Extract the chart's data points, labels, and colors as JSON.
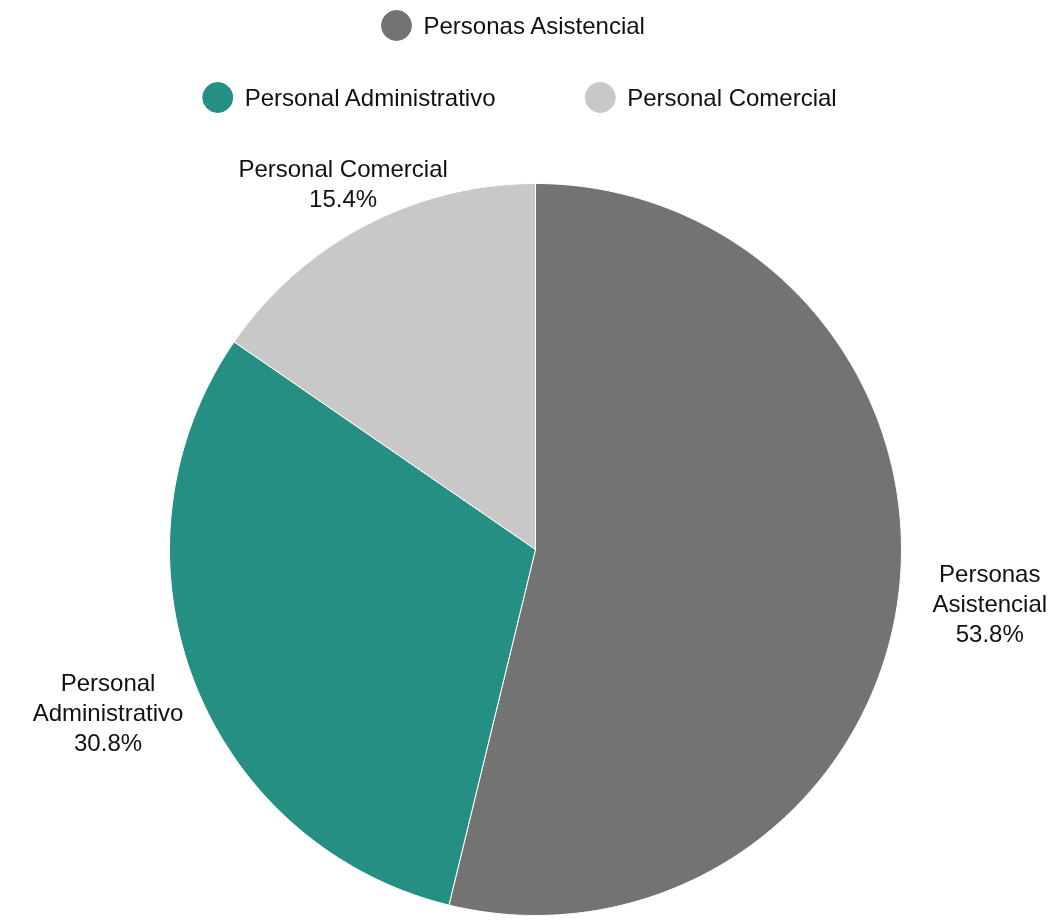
{
  "chart_data": {
    "type": "pie",
    "categories": [
      "Personas Asistencial",
      "Personal Administrativo",
      "Personal Comercial"
    ],
    "values": [
      53.8,
      30.8,
      15.4
    ],
    "colors": [
      "#737371",
      "#268f84",
      "#c8c8c8"
    ],
    "value_labels": [
      "53.8%",
      "30.8%",
      "15.4%"
    ],
    "legend": "top"
  }
}
